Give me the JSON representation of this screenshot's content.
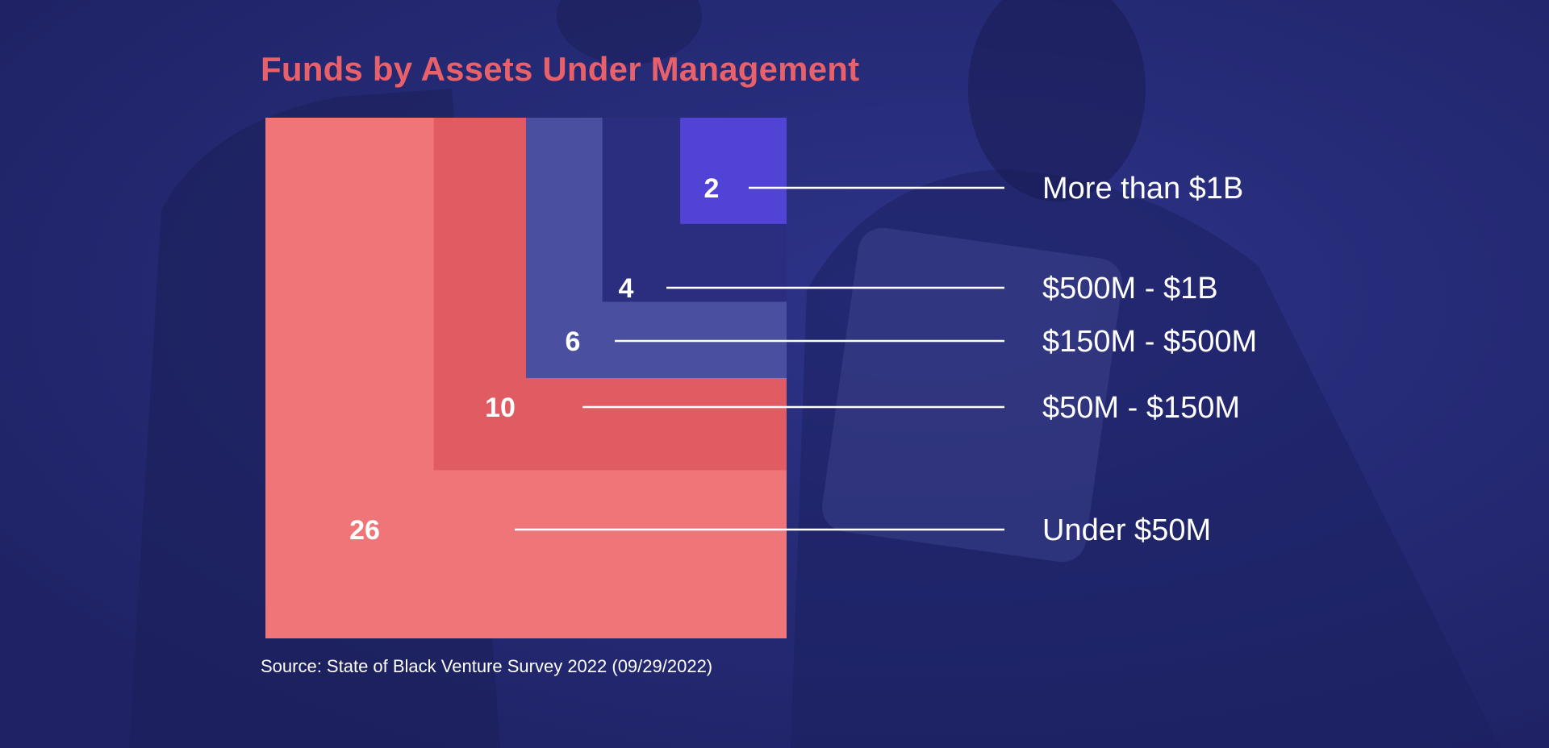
{
  "colors": {
    "background": "#262b73",
    "title": "#e8606a",
    "bracket_under_50m": "#f07578",
    "bracket_50m_150m": "#e05b62",
    "bracket_150m_500m": "#4a4f9f",
    "bracket_500m_1b": "#2b2d7e",
    "bracket_more_than_1b": "#5143d6",
    "text": "#ffffff"
  },
  "chart_data": {
    "type": "nested-square",
    "title": "Funds by Assets Under Management",
    "source": "Source: State of Black Venture Survey 2022 (09/29/2022)",
    "categories": [
      "Under $50M",
      "$50M - $150M",
      "$150M - $500M",
      "$500M - $1B",
      "More than $1B"
    ],
    "values": [
      26,
      10,
      6,
      4,
      2
    ],
    "value_labels": [
      "26",
      "10",
      "6",
      "4",
      "2"
    ]
  }
}
